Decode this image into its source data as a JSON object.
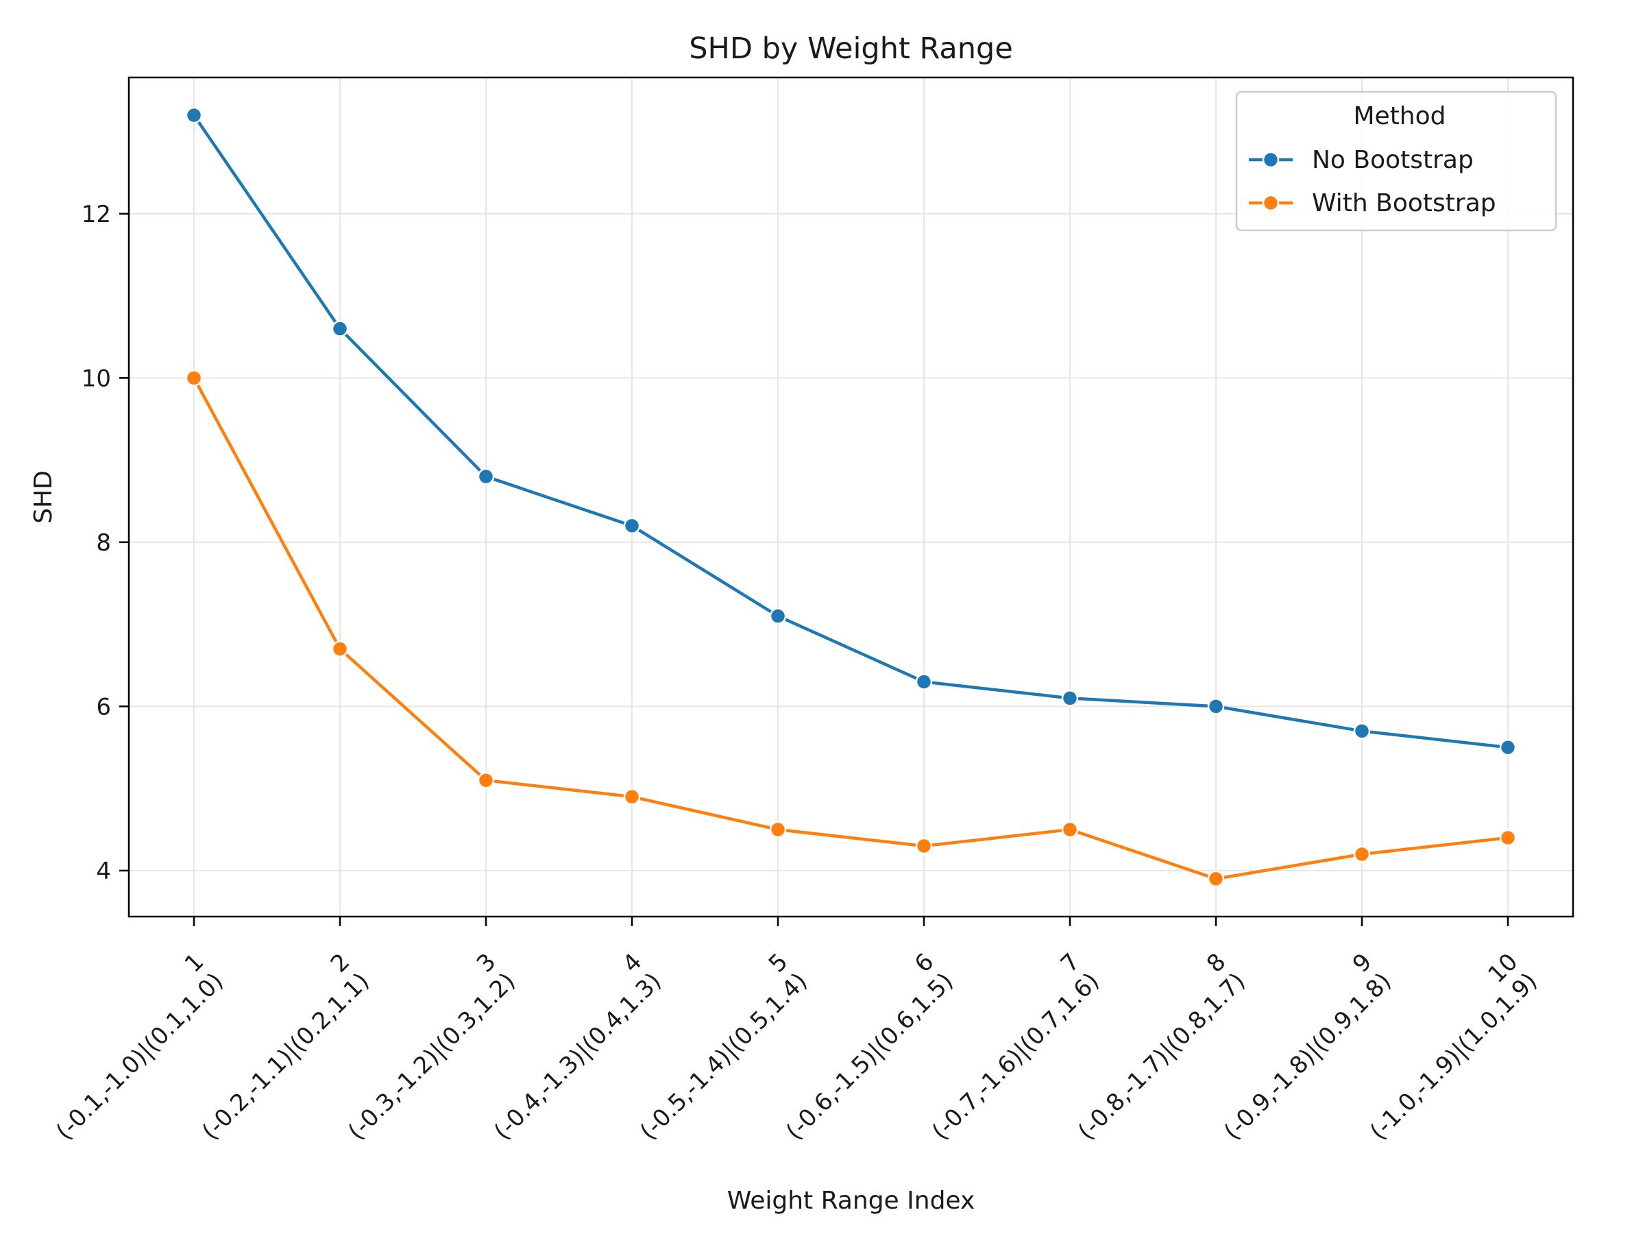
{
  "chart_data": {
    "type": "line",
    "title": "SHD by Weight Range",
    "xlabel": "Weight Range Index",
    "ylabel": "SHD",
    "categories": [
      [
        "1",
        "(-0.1,-1.0)|(0.1,1.0)"
      ],
      [
        "2",
        "(-0.2,-1.1)|(0.2,1.1)"
      ],
      [
        "3",
        "(-0.3,-1.2)|(0.3,1.2)"
      ],
      [
        "4",
        "(-0.4,-1.3)|(0.4,1.3)"
      ],
      [
        "5",
        "(-0.5,-1.4)|(0.5,1.4)"
      ],
      [
        "6",
        "(-0.6,-1.5)|(0.6,1.5)"
      ],
      [
        "7",
        "(-0.7,-1.6)|(0.7,1.6)"
      ],
      [
        "8",
        "(-0.8,-1.7)|(0.8,1.7)"
      ],
      [
        "9",
        "(-0.9,-1.8)|(0.9,1.8)"
      ],
      [
        "10",
        "(-1.0,-1.9)|(1.0,1.9)"
      ]
    ],
    "series": [
      {
        "name": "No Bootstrap",
        "color": "#1f77b4",
        "values": [
          13.2,
          10.6,
          8.8,
          8.2,
          7.1,
          6.3,
          6.1,
          6.0,
          5.7,
          5.5
        ]
      },
      {
        "name": "With Bootstrap",
        "color": "#ff7f0e",
        "values": [
          10.0,
          6.7,
          5.1,
          4.9,
          4.5,
          4.3,
          4.5,
          3.9,
          4.2,
          4.4
        ]
      }
    ],
    "ylim": [
      3.44,
      13.66
    ],
    "yticks": [
      4,
      6,
      8,
      10,
      12
    ],
    "grid": true,
    "legend": {
      "title": "Method",
      "placement": "top-right"
    }
  }
}
